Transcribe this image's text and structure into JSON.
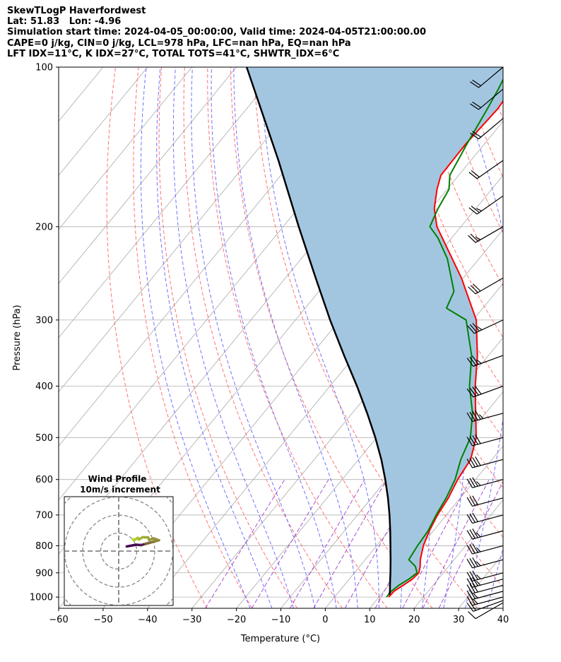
{
  "title_lines": [
    "SkewTLogP Haverfordwest",
    "Lat: 51.83   Lon: -4.96",
    "Simulation start time: 2024-04-05_00:00:00, Valid time: 2024-04-05T21:00:00.00",
    "CAPE=0 j/kg, CIN=0 j/kg, LCL=978 hPa, LFC=nan hPa, EQ=nan hPa",
    "LFT IDX=11°C, K IDX=27°C, TOTAL TOTS=41°C, SHWTR_IDX=6°C"
  ],
  "chart_data": {
    "type": "skew-t log-p",
    "xlabel": "Temperature (°C)",
    "ylabel": "Pressure (hPa)",
    "xlim": [
      -60,
      40
    ],
    "ylim": [
      1050,
      100
    ],
    "x_ticks": [
      "−60",
      "−50",
      "−40",
      "−30",
      "−20",
      "−10",
      "0",
      "10",
      "20",
      "30",
      "40"
    ],
    "y_ticks": [
      "100",
      "200",
      "300",
      "400",
      "500",
      "600",
      "700",
      "800",
      "900",
      "1000"
    ],
    "y_tick_values": [
      100,
      200,
      300,
      400,
      500,
      600,
      700,
      800,
      900,
      1000
    ],
    "x_tick_values": [
      -60,
      -50,
      -40,
      -30,
      -20,
      -10,
      0,
      10,
      20,
      30,
      40
    ],
    "grid": true,
    "colors": {
      "temperature": "#ff0000",
      "dewpoint": "#008000",
      "parcel": "#000000",
      "shade": "#a3c6e0",
      "dry_adiabats": "#ff6464",
      "moist_adiabats": "#6464ff",
      "isotherms": "#a9a9a9",
      "mixing_ratio": "#9932cc"
    },
    "temperature_profile": {
      "pressure": [
        1000,
        975,
        950,
        925,
        900,
        875,
        850,
        800,
        750,
        700,
        650,
        600,
        550,
        500,
        450,
        400,
        350,
        300,
        250,
        200,
        185,
        170,
        160,
        140,
        120,
        110,
        100
      ],
      "temperature": [
        12.2,
        12.3,
        13.3,
        14.2,
        14.5,
        13.6,
        12.4,
        10.5,
        9.1,
        8.0,
        7.3,
        6.0,
        5.2,
        2.4,
        -2.2,
        -7.3,
        -12.5,
        -19.3,
        -30.4,
        -45.4,
        -49.3,
        -52.3,
        -54.0,
        -54.2,
        -53.5,
        -54.0,
        -54.6
      ]
    },
    "dewpoint_profile": {
      "pressure": [
        1000,
        975,
        950,
        925,
        900,
        875,
        850,
        800,
        750,
        700,
        650,
        600,
        550,
        500,
        450,
        400,
        350,
        300,
        285,
        265,
        230,
        210,
        200,
        185,
        170,
        160,
        140,
        120,
        110,
        100
      ],
      "dewpoint": [
        11.7,
        11.7,
        12.3,
        13.4,
        14.1,
        12.5,
        9.8,
        9.2,
        8.8,
        7.7,
        6.8,
        5.4,
        3.0,
        1.1,
        -2.9,
        -8.6,
        -13.8,
        -21.6,
        -28.2,
        -29.6,
        -37.1,
        -43.1,
        -47.0,
        -48.5,
        -49.6,
        -52.0,
        -53.9,
        -55.8,
        -57.0,
        -58.6
      ]
    },
    "parcel_profile": {
      "pressure": [
        990,
        975,
        950,
        925,
        900,
        850,
        800,
        750,
        700,
        650,
        600,
        550,
        500,
        450,
        400,
        350,
        300,
        250,
        200,
        150,
        100
      ],
      "temperature": [
        11.9,
        11.4,
        10.3,
        9.2,
        8.1,
        5.7,
        3.1,
        0.3,
        -2.8,
        -6.3,
        -10.3,
        -14.9,
        -20.3,
        -26.6,
        -33.9,
        -42.5,
        -52.2,
        -63.2,
        -76.5,
        -93.3,
        -117.7
      ]
    },
    "wind_barbs": {
      "pressure": [
        1025,
        1015,
        1000,
        975,
        950,
        925,
        900,
        850,
        800,
        750,
        700,
        650,
        600,
        550,
        500,
        450,
        400,
        350,
        300,
        250,
        200,
        175,
        150,
        125,
        110,
        100
      ],
      "speed_kt": [
        10,
        20,
        25,
        25,
        30,
        35,
        35,
        35,
        35,
        35,
        30,
        30,
        35,
        40,
        40,
        45,
        40,
        35,
        35,
        30,
        25,
        25,
        20,
        20,
        20,
        20
      ],
      "direction_deg": [
        240,
        250,
        255,
        255,
        255,
        255,
        255,
        255,
        255,
        255,
        255,
        255,
        255,
        255,
        255,
        255,
        250,
        250,
        245,
        240,
        240,
        235,
        235,
        230,
        230,
        230
      ]
    },
    "hodograph": {
      "title_lines": [
        "Wind Profile",
        "10m/s increment"
      ],
      "ring_spacing": 10,
      "ring_count": 3,
      "line_color_start": "#440154",
      "line_color_end": "#bddf26"
    }
  }
}
